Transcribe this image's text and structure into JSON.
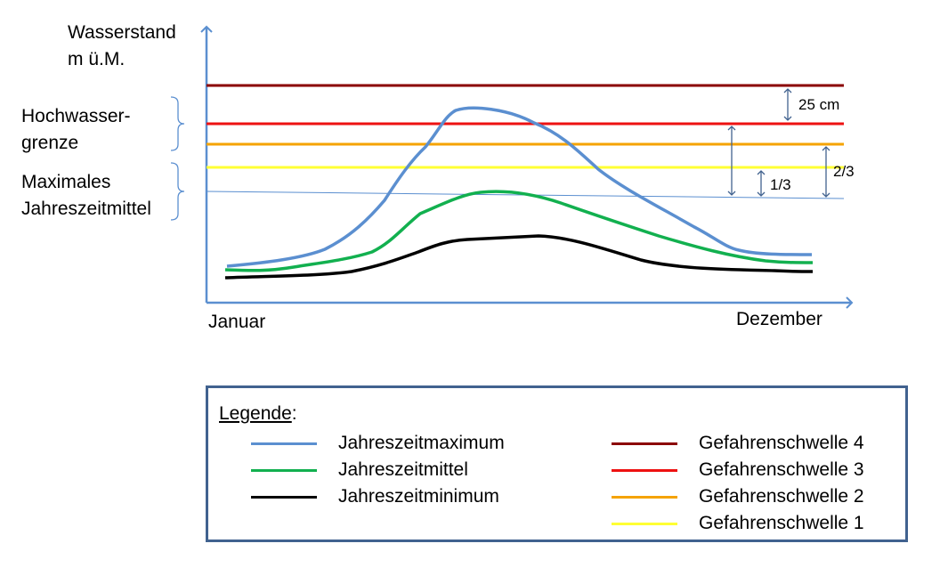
{
  "y_axis_label_line1": "Wasserstand",
  "y_axis_label_line2": "m ü.M.",
  "x_start_label": "Januar",
  "x_end_label": "Dezember",
  "bracket_upper_line1": "Hochwasser-",
  "bracket_upper_line2": "grenze",
  "bracket_lower_line1": "Maximales",
  "bracket_lower_line2": "Jahreszeitmittel",
  "annotation_25cm": "25 cm",
  "annotation_one_third": "1/3",
  "annotation_two_thirds": "2/3",
  "legend": {
    "title": "Legende",
    "title_suffix": ":",
    "left": [
      {
        "label": "Jahreszeitmaximum",
        "color": "#5b8fd0"
      },
      {
        "label": "Jahreszeitmittel",
        "color": "#12b04f"
      },
      {
        "label": "Jahreszeitminimum",
        "color": "#000000"
      }
    ],
    "right": [
      {
        "label": "Gefahrenschwelle 4",
        "color": "#8b0000"
      },
      {
        "label": "Gefahrenschwelle 3",
        "color": "#ee1111"
      },
      {
        "label": "Gefahrenschwelle 2",
        "color": "#f5a300"
      },
      {
        "label": "Gefahrenschwelle 1",
        "color": "#ffff33"
      }
    ]
  },
  "colors": {
    "axis": "#5b8fd0",
    "mean_reference_line": "#5b8fd0",
    "bracket": "#5b8fd0",
    "legend_border": "#41628f"
  }
}
